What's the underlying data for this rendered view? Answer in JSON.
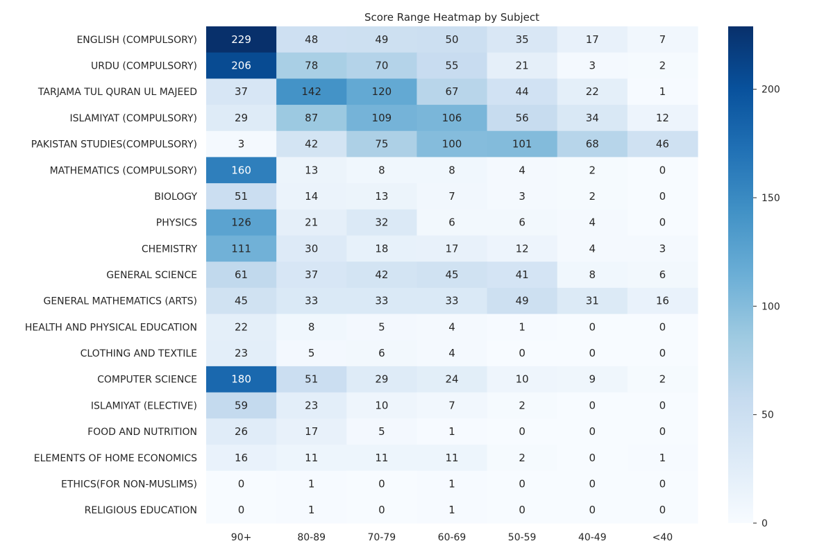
{
  "chart_data": {
    "type": "heatmap",
    "title": "Score Range Heatmap by Subject",
    "xlabel": "",
    "ylabel": "",
    "x_categories": [
      "90+",
      "80-89",
      "70-79",
      "60-69",
      "50-59",
      "40-49",
      "<40"
    ],
    "y_categories": [
      "ENGLISH (COMPULSORY)",
      "URDU (COMPULSORY)",
      "TARJAMA TUL QURAN UL MAJEED",
      "ISLAMIYAT (COMPULSORY)",
      "PAKISTAN STUDIES(COMPULSORY)",
      "MATHEMATICS (COMPULSORY)",
      "BIOLOGY",
      "PHYSICS",
      "CHEMISTRY",
      "GENERAL SCIENCE",
      "GENERAL MATHEMATICS (ARTS)",
      "HEALTH AND PHYSICAL EDUCATION",
      "CLOTHING AND TEXTILE",
      "COMPUTER SCIENCE",
      "ISLAMIYAT (ELECTIVE)",
      "FOOD AND NUTRITION",
      "ELEMENTS OF HOME ECONOMICS",
      "ETHICS(FOR NON-MUSLIMS)",
      "RELIGIOUS EDUCATION"
    ],
    "values": [
      [
        229,
        48,
        49,
        50,
        35,
        17,
        7
      ],
      [
        206,
        78,
        70,
        55,
        21,
        3,
        2
      ],
      [
        37,
        142,
        120,
        67,
        44,
        22,
        1
      ],
      [
        29,
        87,
        109,
        106,
        56,
        34,
        12
      ],
      [
        3,
        42,
        75,
        100,
        101,
        68,
        46
      ],
      [
        160,
        13,
        8,
        8,
        4,
        2,
        0
      ],
      [
        51,
        14,
        13,
        7,
        3,
        2,
        0
      ],
      [
        126,
        21,
        32,
        6,
        6,
        4,
        0
      ],
      [
        111,
        30,
        18,
        17,
        12,
        4,
        3
      ],
      [
        61,
        37,
        42,
        45,
        41,
        8,
        6
      ],
      [
        45,
        33,
        33,
        33,
        49,
        31,
        16
      ],
      [
        22,
        8,
        5,
        4,
        1,
        0,
        0
      ],
      [
        23,
        5,
        6,
        4,
        0,
        0,
        0
      ],
      [
        180,
        51,
        29,
        24,
        10,
        9,
        2
      ],
      [
        59,
        23,
        10,
        7,
        2,
        0,
        0
      ],
      [
        26,
        17,
        5,
        1,
        0,
        0,
        0
      ],
      [
        16,
        11,
        11,
        11,
        2,
        0,
        1
      ],
      [
        0,
        1,
        0,
        1,
        0,
        0,
        0
      ],
      [
        0,
        1,
        0,
        1,
        0,
        0,
        0
      ]
    ],
    "colormap": "Blues",
    "colormap_stops": [
      "#f7fbff",
      "#deebf7",
      "#c6dbef",
      "#9ecae1",
      "#6baed6",
      "#4292c6",
      "#2171b5",
      "#08519c",
      "#08306b"
    ],
    "value_range": [
      0,
      229
    ],
    "annotated": true,
    "colorbar": {
      "position": "right",
      "ticks": [
        0,
        50,
        100,
        150,
        200
      ]
    }
  }
}
